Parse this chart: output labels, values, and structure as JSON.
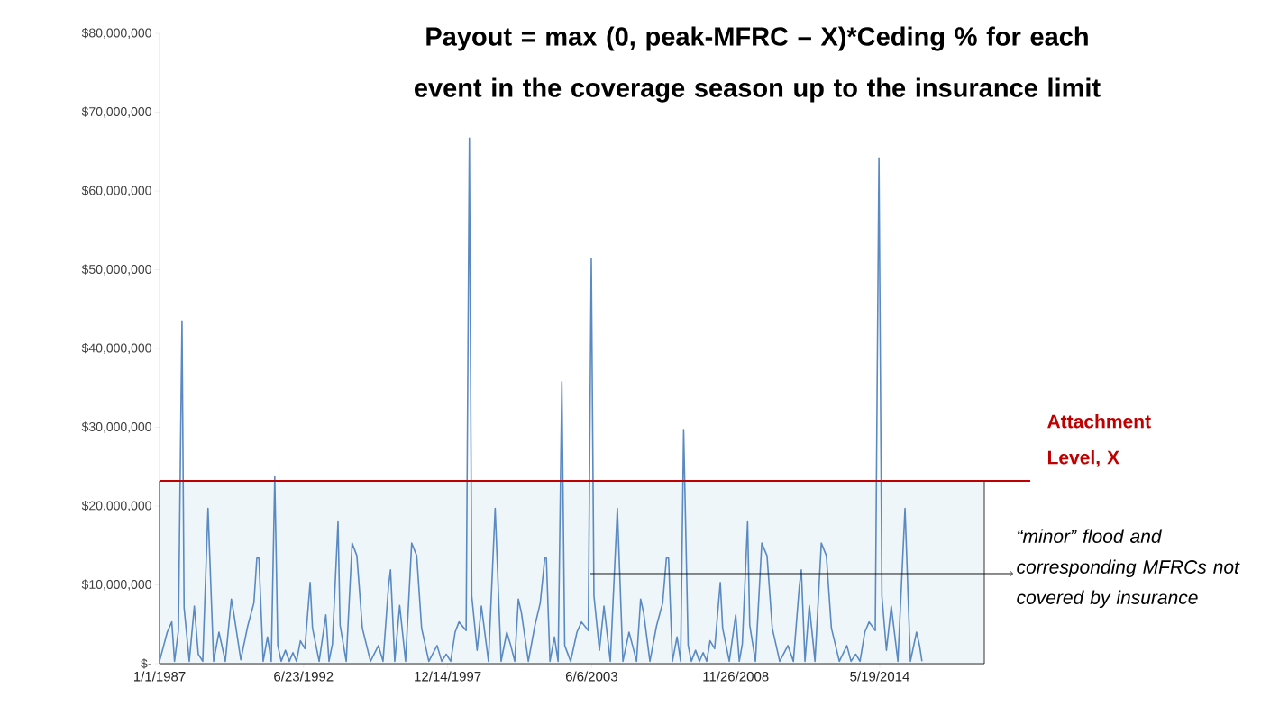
{
  "chart_data": {
    "type": "line",
    "title": "Payout = max (0, peak-MFRC – X)*Ceding % for each event in the coverage season up to the insurance limit",
    "x": [
      "1987-01-01",
      "1987-04-18",
      "1987-06-20",
      "1987-07-28",
      "1987-09-20",
      "1987-11-09",
      "1987-12-08",
      "1988-02-18",
      "1988-04-28",
      "1988-06-22",
      "1988-08-23",
      "1988-11-04",
      "1989-01-21",
      "1989-04-05",
      "1989-07-02",
      "1989-09-24",
      "1989-10-26",
      "1990-02-02",
      "1990-05-10",
      "1990-08-03",
      "1990-09-13",
      "1990-10-12",
      "1990-12-10",
      "1991-02-08",
      "1991-04-01",
      "1991-05-20",
      "1991-07-01",
      "1991-08-17",
      "1991-10-15",
      "1991-12-08",
      "1992-01-27",
      "1992-03-17",
      "1992-05-10",
      "1992-07-11",
      "1992-09-22",
      "1992-10-25",
      "1993-01-25",
      "1993-04-28",
      "1993-06-11",
      "1993-07-28",
      "1993-10-14",
      "1993-11-12",
      "1994-02-05",
      "1994-04-28",
      "1994-07-03",
      "1994-09-17",
      "1995-01-08",
      "1995-04-28",
      "1995-07-01",
      "1995-09-15",
      "1995-10-13",
      "1995-12-11",
      "1996-02-17",
      "1996-05-09",
      "1996-08-02",
      "1996-10-11",
      "1996-12-18",
      "1997-03-28",
      "1997-07-21",
      "1997-09-23",
      "1997-11-25",
      "1998-01-26",
      "1998-03-28",
      "1998-05-21",
      "1998-08-28",
      "1998-10-12",
      "1998-11-14",
      "1999-01-28",
      "1999-03-28",
      "1999-07-04",
      "1999-10-05",
      "1999-12-27",
      "2000-03-15",
      "2000-05-09",
      "2000-07-03",
      "2000-08-22",
      "2000-10-03",
      "2001-01-08",
      "2001-04-08",
      "2001-06-22",
      "2001-08-24",
      "2001-09-15",
      "2001-11-04",
      "2002-01-05",
      "2002-02-25",
      "2002-04-18",
      "2002-05-28",
      "2002-08-18",
      "2002-11-14",
      "2003-01-16",
      "2003-04-20",
      "2003-06-01",
      "2003-07-08",
      "2003-09-22",
      "2003-11-24",
      "2004-02-20",
      "2004-05-28",
      "2004-08-13",
      "2004-11-06",
      "2004-12-25",
      "2005-02-18",
      "2005-04-16",
      "2005-05-27",
      "2005-08-23",
      "2005-11-23",
      "2006-02-16",
      "2006-04-09",
      "2006-05-09",
      "2006-07-02",
      "2006-09-04",
      "2006-10-23",
      "2006-12-04",
      "2007-02-05",
      "2007-03-21",
      "2007-05-19",
      "2007-07-12",
      "2007-09-01",
      "2007-10-21",
      "2007-12-06",
      "2008-02-08",
      "2008-04-26",
      "2008-05-29",
      "2008-08-29",
      "2008-11-26",
      "2009-01-15",
      "2009-02-26",
      "2009-05-10",
      "2009-06-09",
      "2009-08-27",
      "2009-11-23",
      "2010-02-04",
      "2010-04-18",
      "2010-07-30",
      "2010-11-21",
      "2011-02-05",
      "2011-04-28",
      "2011-05-26",
      "2011-07-16",
      "2011-09-14",
      "2011-12-02",
      "2012-02-28",
      "2012-05-08",
      "2012-07-17",
      "2012-11-04",
      "2013-02-17",
      "2013-04-15",
      "2013-06-20",
      "2013-08-18",
      "2013-10-24",
      "2013-12-22",
      "2014-03-18",
      "2014-05-08",
      "2014-06-18",
      "2014-08-20",
      "2014-10-26",
      "2015-01-26",
      "2015-05-05",
      "2015-07-19",
      "2015-10-12",
      "2015-11-23",
      "2015-12-26"
    ],
    "series": [
      {
        "color": "#5b8ac2",
        "values": [
          300000,
          4000000,
          5300000,
          300000,
          4200000,
          43500000,
          7100000,
          300000,
          7300000,
          1200000,
          300000,
          19700000,
          300000,
          4000000,
          300000,
          8200000,
          6500000,
          500000,
          4800000,
          7700000,
          13400000,
          13400000,
          300000,
          3400000,
          300000,
          23700000,
          2300000,
          300000,
          1700000,
          300000,
          1400000,
          300000,
          2900000,
          1900000,
          10300000,
          4500000,
          300000,
          6200000,
          300000,
          2500000,
          18000000,
          4900000,
          300000,
          15300000,
          13700000,
          4500000,
          300000,
          2300000,
          300000,
          9800000,
          11900000,
          300000,
          7400000,
          300000,
          15300000,
          13700000,
          4500000,
          300000,
          2300000,
          300000,
          1200000,
          300000,
          4000000,
          5300000,
          4200000,
          66700000,
          8600000,
          1700000,
          7300000,
          300000,
          19700000,
          300000,
          4000000,
          2300000,
          300000,
          8200000,
          6500000,
          300000,
          4800000,
          7700000,
          13400000,
          13400000,
          300000,
          3400000,
          300000,
          35800000,
          2300000,
          300000,
          4000000,
          5300000,
          4200000,
          51400000,
          8600000,
          1700000,
          7300000,
          300000,
          19700000,
          300000,
          4000000,
          2300000,
          300000,
          8200000,
          6500000,
          300000,
          4800000,
          7700000,
          13400000,
          13400000,
          300000,
          3400000,
          300000,
          29700000,
          2300000,
          300000,
          1700000,
          300000,
          1400000,
          300000,
          2900000,
          1900000,
          10300000,
          4500000,
          300000,
          6200000,
          300000,
          2500000,
          18000000,
          4900000,
          300000,
          15300000,
          13700000,
          4500000,
          300000,
          2300000,
          300000,
          9800000,
          11900000,
          300000,
          7400000,
          300000,
          15300000,
          13700000,
          4500000,
          300000,
          2300000,
          300000,
          1200000,
          300000,
          4000000,
          5300000,
          4200000,
          64200000,
          8600000,
          1700000,
          7300000,
          300000,
          19700000,
          300000,
          4000000,
          2300000,
          300000
        ]
      }
    ],
    "xlim": [
      "1987-01-01",
      "2018-05-10"
    ],
    "xticks": [
      {
        "value": "1987-01-01",
        "label": "1/1/1987"
      },
      {
        "value": "1992-06-23",
        "label": "6/23/1992"
      },
      {
        "value": "1997-12-14",
        "label": "12/14/1997"
      },
      {
        "value": "2003-06-06",
        "label": "6/6/2003"
      },
      {
        "value": "2008-11-26",
        "label": "11/26/2008"
      },
      {
        "value": "2014-05-19",
        "label": "5/19/2014"
      }
    ],
    "ylim": [
      0,
      80000000
    ],
    "yticks": [
      {
        "value": 0,
        "label": "$-"
      },
      {
        "value": 10000000,
        "label": "$10,000,000"
      },
      {
        "value": 20000000,
        "label": "$20,000,000"
      },
      {
        "value": 30000000,
        "label": "$30,000,000"
      },
      {
        "value": 40000000,
        "label": "$40,000,000"
      },
      {
        "value": 50000000,
        "label": "$50,000,000"
      },
      {
        "value": 60000000,
        "label": "$60,000,000"
      },
      {
        "value": 70000000,
        "label": "$70,000,000"
      },
      {
        "value": 80000000,
        "label": "$80,000,000"
      }
    ],
    "ref_lines": [
      {
        "axis": "y",
        "value": 23200000,
        "label": "Attachment Level, X",
        "color": "#c00000"
      }
    ],
    "bands": [
      {
        "axis": "y",
        "from": 0,
        "to": 23200000,
        "color": "#eef6f9"
      }
    ],
    "annotations": [
      "“minor” flood and corresponding MFRCs not covered by insurance"
    ]
  }
}
